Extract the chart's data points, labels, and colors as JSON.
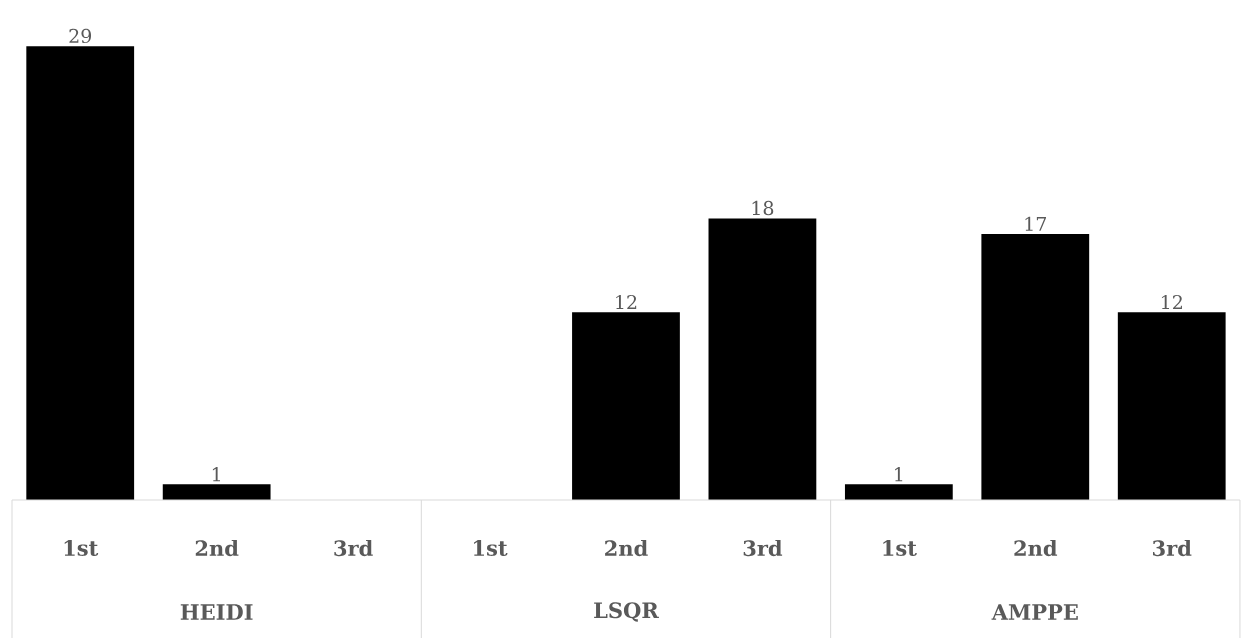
{
  "chart_data": {
    "type": "bar",
    "categories": [
      "1st",
      "2nd",
      "3rd",
      "1st",
      "2nd",
      "3rd",
      "1st",
      "2nd",
      "3rd"
    ],
    "values": [
      29,
      1,
      null,
      null,
      12,
      18,
      1,
      17,
      12
    ],
    "color": "#000000",
    "data_labels": true,
    "annotations": [
      "HEIDI",
      "LSQR",
      "AMPPE"
    ]
  }
}
